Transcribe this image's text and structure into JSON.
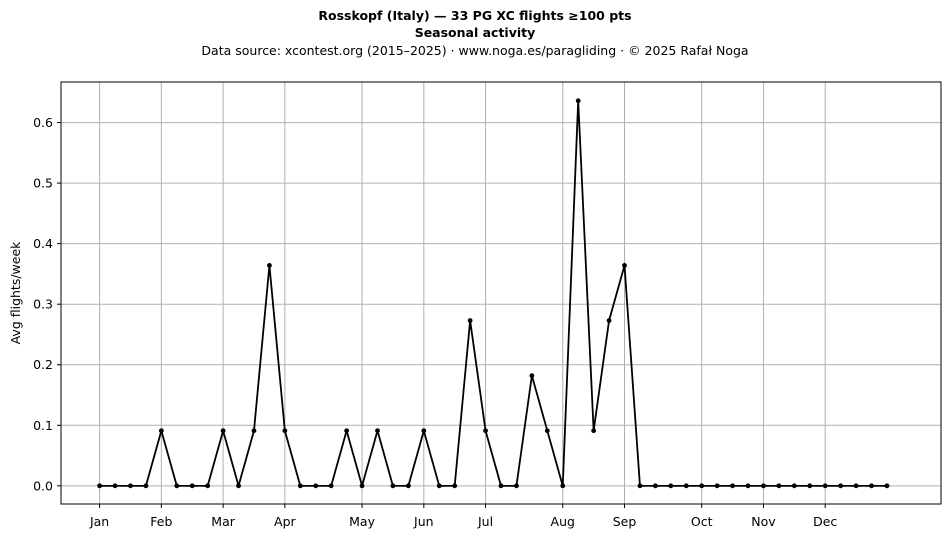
{
  "chart_data": {
    "type": "line",
    "title": "Rosskopf (Italy)  —  33 PG XC flights ≥100 pts",
    "subtitle": "Seasonal activity",
    "source": "Data source: xcontest.org (2015–2025)  ·  www.noga.es/paragliding  ·  © 2025 Rafał Noga",
    "xlabel": "",
    "ylabel": "Avg flights/week",
    "xlim": [
      -2.5,
      54.5
    ],
    "ylim": [
      -0.03,
      0.667
    ],
    "grid": true,
    "legend": "none",
    "line_color": "#000000",
    "x_ticks": [
      {
        "label": "Jan",
        "week": 0
      },
      {
        "label": "Feb",
        "week": 4
      },
      {
        "label": "Mar",
        "week": 8
      },
      {
        "label": "Apr",
        "week": 12
      },
      {
        "label": "May",
        "week": 17
      },
      {
        "label": "Jun",
        "week": 21
      },
      {
        "label": "Jul",
        "week": 25
      },
      {
        "label": "Aug",
        "week": 30
      },
      {
        "label": "Sep",
        "week": 34
      },
      {
        "label": "Oct",
        "week": 39
      },
      {
        "label": "Nov",
        "week": 43
      },
      {
        "label": "Dec",
        "week": 47
      }
    ],
    "y_ticks": [
      0.0,
      0.1,
      0.2,
      0.3,
      0.4,
      0.5,
      0.6
    ],
    "series": [
      {
        "x": [
          0,
          1,
          2,
          3,
          4,
          5,
          6,
          7,
          8,
          9,
          10,
          11,
          12,
          13,
          14,
          15,
          16,
          17,
          18,
          19,
          20,
          21,
          22,
          23,
          24,
          25,
          26,
          27,
          28,
          29,
          30,
          31,
          32,
          33,
          34,
          35,
          36,
          37,
          38,
          39,
          40,
          41,
          42,
          43,
          44,
          45,
          46,
          47,
          48,
          49,
          50,
          51
        ],
        "values": [
          0,
          0,
          0,
          0,
          0.091,
          0,
          0,
          0,
          0.091,
          0,
          0.091,
          0.364,
          0.091,
          0,
          0,
          0,
          0.091,
          0,
          0.091,
          0,
          0,
          0.091,
          0,
          0,
          0.273,
          0.091,
          0,
          0,
          0.182,
          0.091,
          0,
          0.636,
          0.091,
          0.273,
          0.364,
          0,
          0,
          0,
          0,
          0,
          0,
          0,
          0,
          0,
          0,
          0,
          0,
          0,
          0,
          0,
          0,
          0
        ]
      }
    ]
  }
}
